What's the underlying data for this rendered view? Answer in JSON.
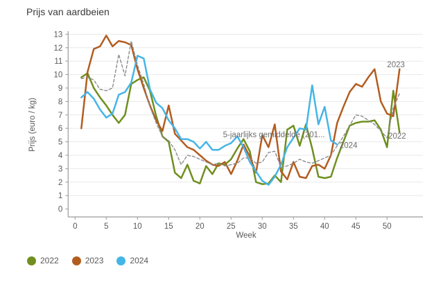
{
  "title": "Prijs van aardbeien",
  "y_axis_title": "Prijs (euro / kg)",
  "x_axis_title": "Week",
  "colors": {
    "s2022": "#6f8f1f",
    "s2023": "#b35c1f",
    "s2024": "#45b5e8",
    "avg": "#8c8c8c",
    "grid": "#e8e8e8",
    "axis": "#9a9a9a",
    "tick_text": "#595959",
    "annotation_text": "#6e6e6e",
    "title_text": "#3a3a3a"
  },
  "legend": [
    {
      "label": "2022",
      "color_key": "s2022"
    },
    {
      "label": "2023",
      "color_key": "s2023"
    },
    {
      "label": "2024",
      "color_key": "s2024"
    }
  ],
  "chart_data": {
    "type": "line",
    "title": "Prijs van aardbeien",
    "xlabel": "Week",
    "ylabel": "Prijs (euro / kg)",
    "xlim": [
      0,
      53
    ],
    "ylim": [
      0,
      13
    ],
    "x_ticks": [
      0,
      5,
      10,
      15,
      20,
      25,
      30,
      35,
      40,
      45,
      50
    ],
    "y_ticks": [
      0,
      1,
      2,
      3,
      4,
      5,
      6,
      7,
      8,
      9,
      10,
      11,
      12,
      13
    ],
    "grid": "horizontal",
    "legend_position": "bottom-left",
    "series": [
      {
        "name": "2022",
        "color_key": "s2022",
        "dashed": false,
        "start_week": 1,
        "values": [
          9.8,
          10.1,
          9.0,
          8.3,
          7.7,
          7.0,
          6.4,
          7.0,
          9.3,
          9.6,
          9.8,
          8.8,
          6.9,
          5.4,
          5.0,
          2.7,
          2.3,
          3.3,
          2.1,
          1.9,
          3.2,
          2.6,
          3.4,
          3.3,
          3.7,
          4.5,
          5.2,
          4.3,
          2.0,
          1.85,
          1.9,
          2.5,
          2.0,
          5.9,
          6.2,
          4.7,
          6.3,
          4.5,
          2.4,
          2.3,
          2.4,
          3.8,
          5.0,
          6.2,
          6.4,
          6.5,
          6.5,
          6.6,
          5.9,
          4.6,
          8.8,
          5.7
        ]
      },
      {
        "name": "2023",
        "color_key": "s2023",
        "dashed": false,
        "start_week": 1,
        "values": [
          6.0,
          10.2,
          11.9,
          12.1,
          12.9,
          12.1,
          12.5,
          12.4,
          12.2,
          10.4,
          9.0,
          7.7,
          6.6,
          5.8,
          7.7,
          5.6,
          5.1,
          4.6,
          4.4,
          4.0,
          3.6,
          3.3,
          3.2,
          3.5,
          2.6,
          3.6,
          4.8,
          3.9,
          2.7,
          5.5,
          4.6,
          6.3,
          2.8,
          2.2,
          3.5,
          2.4,
          2.3,
          3.2,
          3.3,
          3.0,
          4.0,
          6.4,
          7.6,
          8.7,
          9.3,
          9.1,
          9.8,
          10.4,
          8.0,
          7.1,
          6.9,
          10.4
        ]
      },
      {
        "name": "2024",
        "color_key": "s2024",
        "dashed": false,
        "start_week": 1,
        "values": [
          8.3,
          8.7,
          8.2,
          7.4,
          6.8,
          7.1,
          8.5,
          8.7,
          9.4,
          11.4,
          11.2,
          8.9,
          7.9,
          7.5,
          6.6,
          6.0,
          5.2,
          5.2,
          5.0,
          4.5,
          5.0,
          4.4,
          4.4,
          4.7,
          4.9,
          5.4,
          4.6,
          3.5,
          2.8,
          2.1,
          1.8,
          2.4,
          3.3,
          4.6,
          5.3,
          6.0,
          5.9,
          9.2,
          6.3,
          7.6,
          5.1,
          4.8
        ]
      },
      {
        "name": "5-jaarlijks gemiddelde",
        "color_key": "avg",
        "dashed": true,
        "start_week": 1,
        "values": [
          9.7,
          9.8,
          9.6,
          8.9,
          8.8,
          9.0,
          11.5,
          9.9,
          12.5,
          10.7,
          9.3,
          7.6,
          6.4,
          5.4,
          5.1,
          4.4,
          3.3,
          4.0,
          3.9,
          3.7,
          3.5,
          3.3,
          3.4,
          3.2,
          3.3,
          3.4,
          3.8,
          3.8,
          3.4,
          3.5,
          4.2,
          4.3,
          3.1,
          3.2,
          3.4,
          3.7,
          3.5,
          3.4,
          3.6,
          3.8,
          4.0,
          4.7,
          5.4,
          6.2,
          7.0,
          6.9,
          6.6,
          6.3,
          5.8,
          5.3,
          7.5,
          8.6
        ]
      }
    ],
    "annotations": [
      {
        "text": "5-jaarlijks gemiddelde (201...",
        "week": 23.7,
        "value": 5.55,
        "anchor": "start"
      },
      {
        "text": "2024",
        "week": 42.4,
        "value": 4.75,
        "anchor": "start"
      },
      {
        "text": "2023",
        "week": 50.0,
        "value": 10.75,
        "anchor": "start"
      },
      {
        "text": "2022",
        "week": 50.2,
        "value": 5.45,
        "anchor": "start"
      }
    ]
  }
}
